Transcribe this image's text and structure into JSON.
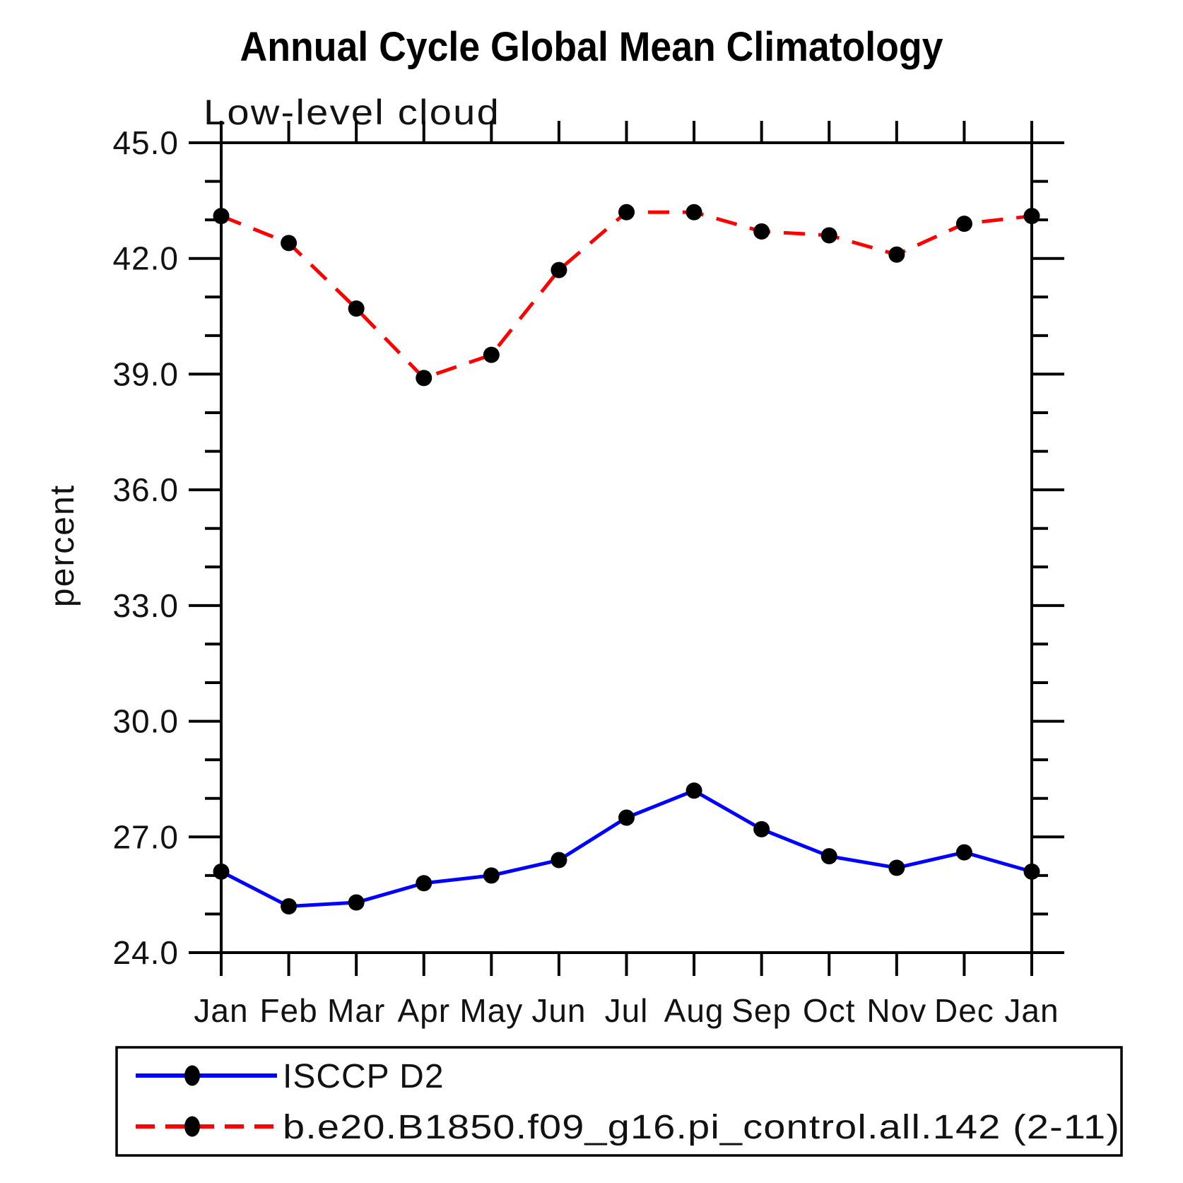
{
  "title": "Annual Cycle Global Mean Climatology",
  "subtitle": "Low-level cloud",
  "chart_data": {
    "type": "line",
    "x_categories": [
      "Jan",
      "Feb",
      "Mar",
      "Apr",
      "May",
      "Jun",
      "Jul",
      "Aug",
      "Sep",
      "Oct",
      "Nov",
      "Dec",
      "Jan"
    ],
    "xlabel": "",
    "ylabel": "percent",
    "ylim": [
      24.0,
      45.0
    ],
    "y_major_ticks": [
      24.0,
      27.0,
      30.0,
      33.0,
      36.0,
      39.0,
      42.0,
      45.0
    ],
    "y_minor_tick_interval": 1.0,
    "y_tick_label_format": "one-decimal",
    "grid": false,
    "legend_position": "bottom-box",
    "series": [
      {
        "name": "ISCCP D2",
        "line_style": "solid",
        "color": "#0000ff",
        "marker": "filled-black-circle",
        "values": [
          26.1,
          25.2,
          25.3,
          25.8,
          26.0,
          26.4,
          27.5,
          28.2,
          27.2,
          26.5,
          26.2,
          26.6,
          26.1
        ]
      },
      {
        "name": "b.e20.B1850.f09_g16.pi_control.all.142 (2-11)",
        "line_style": "dashed",
        "color": "#ff0000",
        "marker": "filled-black-circle",
        "values": [
          43.1,
          42.4,
          40.7,
          38.9,
          39.5,
          41.7,
          43.2,
          43.2,
          42.7,
          42.6,
          42.1,
          42.9,
          43.1
        ]
      }
    ]
  },
  "colors": {
    "background": "#ffffff",
    "axis": "#000000",
    "marker": "#000000",
    "text": "#121212"
  }
}
